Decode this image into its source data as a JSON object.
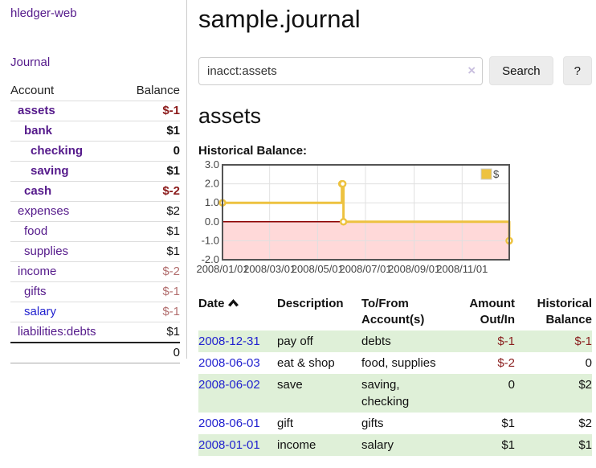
{
  "sidebar": {
    "brand": "hledger-web",
    "journal_label": "Journal",
    "accounts_table": {
      "account_header": "Account",
      "balance_header": "Balance",
      "rows": [
        {
          "label": "assets",
          "balance": "$-1",
          "level": 1,
          "in_filter": true,
          "balance_tone": "neg-strong"
        },
        {
          "label": "bank",
          "balance": "$1",
          "level": 2,
          "in_filter": true,
          "balance_tone": "pos"
        },
        {
          "label": "checking",
          "balance": "0",
          "level": 3,
          "in_filter": true,
          "balance_tone": "pos"
        },
        {
          "label": "saving",
          "balance": "$1",
          "level": 3,
          "in_filter": true,
          "balance_tone": "pos"
        },
        {
          "label": "cash",
          "balance": "$-2",
          "level": 2,
          "in_filter": true,
          "balance_tone": "neg-strong"
        },
        {
          "label": "expenses",
          "balance": "$2",
          "level": 1,
          "in_filter": false,
          "balance_tone": "pos"
        },
        {
          "label": "food",
          "balance": "$1",
          "level": 2,
          "in_filter": false,
          "balance_tone": "pos"
        },
        {
          "label": "supplies",
          "balance": "$1",
          "level": 2,
          "in_filter": false,
          "balance_tone": "pos"
        },
        {
          "label": "income",
          "balance": "$-2",
          "level": 1,
          "in_filter": false,
          "balance_tone": "neg-dim"
        },
        {
          "label": "gifts",
          "balance": "$-1",
          "level": 2,
          "in_filter": false,
          "balance_tone": "neg-dim"
        },
        {
          "label": "salary",
          "balance": "$-1",
          "level": 2,
          "in_filter": false,
          "balance_tone": "neg-dim",
          "link_state": "unvisited"
        },
        {
          "label": "liabilities:debts",
          "balance": "$1",
          "level": 1,
          "in_filter": false,
          "balance_tone": "pos"
        }
      ],
      "total": "0"
    }
  },
  "header": {
    "title": "sample.journal"
  },
  "search": {
    "value": "inacct:assets",
    "clear_glyph": "×",
    "button_label": "Search",
    "help_label": "?"
  },
  "account_page": {
    "heading": "assets",
    "chart_label": "Historical Balance:"
  },
  "chart_data": {
    "type": "line",
    "title": "Historical Balance:",
    "series": [
      {
        "name": "$",
        "color": "#EDC240",
        "steps": true,
        "points": [
          {
            "date": "2008-01-01",
            "value": 1
          },
          {
            "date": "2008-06-01",
            "value": 2
          },
          {
            "date": "2008-06-02",
            "value": 2
          },
          {
            "date": "2008-06-03",
            "value": 0
          },
          {
            "date": "2008-12-31",
            "value": -1
          }
        ]
      }
    ],
    "ylim": [
      -2,
      3
    ],
    "yticks": [
      3.0,
      2.0,
      1.0,
      0.0,
      -1.0,
      -2.0
    ],
    "xticks": [
      "2008/01/01",
      "2008/03/01",
      "2008/05/01",
      "2008/07/01",
      "2008/09/01",
      "2008/11/01"
    ],
    "x_range_days": 365,
    "grid": true,
    "legend": "$",
    "legend_position": "top-right",
    "negative_region_fill": "#ffd9d9",
    "zero_line_color": "#8b0000",
    "border_color": "#545454",
    "axis_text_color": "#444444"
  },
  "register": {
    "headers": {
      "date": "Date",
      "description": "Description",
      "accounts": "To/From\nAccount(s)",
      "amount": "Amount\nOut/In",
      "balance": "Historical\nBalance"
    },
    "rows": [
      {
        "date": "2008-12-31",
        "description": "pay off",
        "accounts": "debts",
        "amount": "$-1",
        "amount_neg": true,
        "balance": "$-1",
        "balance_neg": true
      },
      {
        "date": "2008-06-03",
        "description": "eat & shop",
        "accounts": "food, supplies",
        "amount": "$-2",
        "amount_neg": true,
        "balance": "0",
        "balance_neg": false
      },
      {
        "date": "2008-06-02",
        "description": "save",
        "accounts": "saving,\nchecking",
        "amount": "0",
        "amount_neg": false,
        "balance": "$2",
        "balance_neg": false
      },
      {
        "date": "2008-06-01",
        "description": "gift",
        "accounts": "gifts",
        "amount": "$1",
        "amount_neg": false,
        "balance": "$2",
        "balance_neg": false
      },
      {
        "date": "2008-01-01",
        "description": "income",
        "accounts": "salary",
        "amount": "$1",
        "amount_neg": false,
        "balance": "$1",
        "balance_neg": false
      }
    ]
  }
}
